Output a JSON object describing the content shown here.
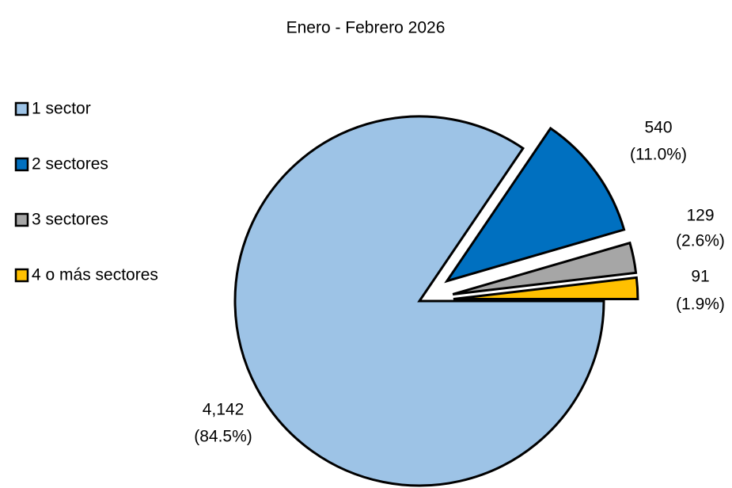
{
  "chart_data": {
    "type": "pie",
    "title": "Enero - Febrero 2026",
    "categories": [
      "1 sector",
      "2 sectores",
      "3 sectores",
      "4 o más sectores"
    ],
    "values": [
      4142,
      540,
      129,
      91
    ],
    "value_labels": [
      "4,142",
      "540",
      "129",
      "91"
    ],
    "percentages": [
      84.5,
      11.0,
      2.6,
      1.9
    ],
    "percentage_labels": [
      "(84.5%)",
      "(11.0%)",
      "(2.6%)",
      "(1.9%)"
    ],
    "colors": [
      "#9dc3e6",
      "#0070c0",
      "#a6a6a6",
      "#ffc000"
    ],
    "legend": "left"
  }
}
